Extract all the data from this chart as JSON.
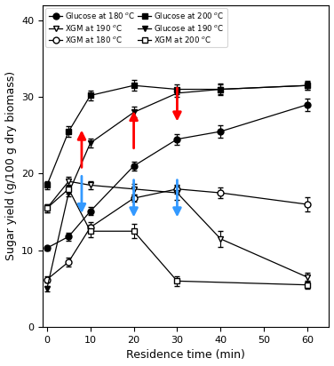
{
  "title": "",
  "xlabel": "Residence time (min)",
  "ylabel": "Sugar yield (g/100 g dry biomass)",
  "xlim": [
    -1,
    65
  ],
  "ylim": [
    0,
    42
  ],
  "xticks": [
    0,
    10,
    20,
    30,
    40,
    50,
    60
  ],
  "yticks": [
    0,
    10,
    20,
    30,
    40
  ],
  "series": {
    "glucose_180": {
      "x": [
        0,
        5,
        10,
        20,
        30,
        40,
        60
      ],
      "y": [
        10.3,
        11.8,
        15.1,
        21.0,
        24.5,
        25.5,
        29.0
      ],
      "yerr": [
        0.3,
        0.5,
        0.5,
        0.6,
        0.7,
        0.8,
        0.8
      ],
      "marker": "o",
      "mfc": "black",
      "mec": "black",
      "ms": 5,
      "label": "Glucose at 180 "
    },
    "xgm_180": {
      "x": [
        0,
        5,
        10,
        20,
        30,
        40,
        60
      ],
      "y": [
        6.2,
        8.5,
        13.0,
        16.8,
        18.0,
        17.5,
        16.0
      ],
      "yerr": [
        0.4,
        0.6,
        0.7,
        0.5,
        0.6,
        0.7,
        0.9
      ],
      "marker": "o",
      "mfc": "white",
      "mec": "black",
      "ms": 5,
      "label": "XGM at 180 "
    },
    "glucose_190": {
      "x": [
        0,
        5,
        10,
        20,
        30,
        40,
        60
      ],
      "y": [
        5.0,
        17.5,
        24.0,
        28.0,
        30.5,
        31.0,
        31.5
      ],
      "yerr": [
        0.3,
        0.5,
        0.6,
        0.7,
        0.5,
        0.6,
        0.5
      ],
      "marker": "v",
      "mfc": "black",
      "mec": "black",
      "ms": 5,
      "label": "Glucose at 190 "
    },
    "xgm_190": {
      "x": [
        0,
        5,
        10,
        20,
        30,
        40,
        60
      ],
      "y": [
        15.5,
        19.0,
        18.5,
        18.0,
        17.5,
        11.5,
        6.5
      ],
      "yerr": [
        0.5,
        0.6,
        0.5,
        0.7,
        0.9,
        1.0,
        0.6
      ],
      "marker": "v",
      "mfc": "white",
      "mec": "black",
      "ms": 5,
      "label": "XGM at 190 "
    },
    "glucose_200": {
      "x": [
        0,
        5,
        10,
        20,
        30,
        40,
        60
      ],
      "y": [
        18.5,
        25.5,
        30.2,
        31.5,
        31.0,
        31.0,
        31.5
      ],
      "yerr": [
        0.5,
        0.7,
        0.6,
        0.7,
        0.6,
        0.7,
        0.6
      ],
      "marker": "s",
      "mfc": "black",
      "mec": "black",
      "ms": 5,
      "label": "Glucose at 200 "
    },
    "xgm_200": {
      "x": [
        0,
        5,
        10,
        20,
        30,
        60
      ],
      "y": [
        15.5,
        18.0,
        12.5,
        12.5,
        6.0,
        5.5
      ],
      "yerr": [
        0.5,
        0.6,
        0.8,
        0.9,
        0.6,
        0.5
      ],
      "marker": "s",
      "mfc": "white",
      "mec": "black",
      "ms": 5,
      "label": "XGM at 200 "
    }
  },
  "red_arrows": [
    {
      "x": 8,
      "y_start": 20.5,
      "y_end": 26.0
    },
    {
      "x": 20,
      "y_start": 23.0,
      "y_end": 28.5
    },
    {
      "x": 30,
      "y_start": 31.5,
      "y_end": 26.5
    }
  ],
  "blue_arrows": [
    {
      "x": 8,
      "y_start": 20.0,
      "y_end": 14.5
    },
    {
      "x": 20,
      "y_start": 19.5,
      "y_end": 14.0
    },
    {
      "x": 30,
      "y_start": 19.5,
      "y_end": 14.0
    }
  ],
  "legend_rows": [
    [
      "glucose_180",
      "xgm_190"
    ],
    [
      "xgm_180",
      "glucose_200"
    ],
    [
      "glucose_190",
      "xgm_200"
    ]
  ],
  "figsize": [
    3.76,
    4.12
  ],
  "dpi": 100
}
